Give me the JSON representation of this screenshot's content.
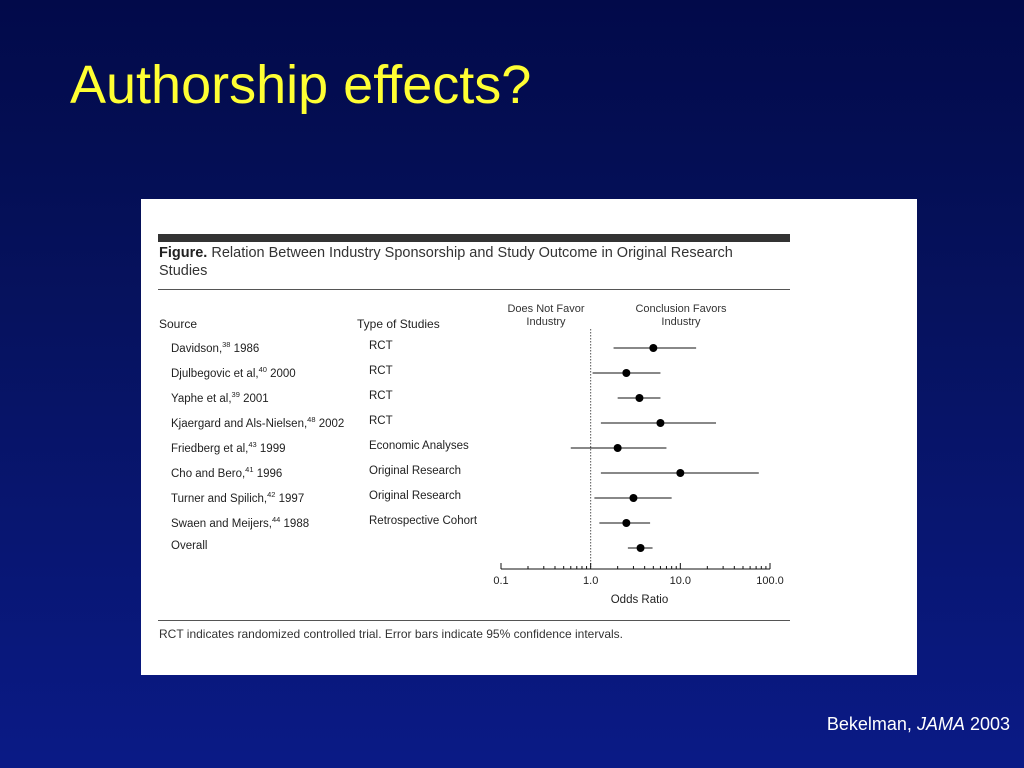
{
  "slide": {
    "title": "Authorship effects?",
    "citation": {
      "author": "Bekelman, ",
      "journal": "JAMA",
      "year": " 2003"
    }
  },
  "figure": {
    "label": "Figure.",
    "title": " Relation Between Industry Sponsorship and Study Outcome in Original Research Studies",
    "footnote": "RCT indicates randomized controlled trial. Error bars indicate 95% confidence intervals.",
    "col_source": "Source",
    "col_type": "Type of Studies",
    "left_label": "Does Not Favor Industry",
    "right_label": "Conclusion Favors Industry"
  },
  "chart_data": {
    "type": "scatter",
    "subtype": "forest-plot",
    "xlabel": "Odds Ratio",
    "x_scale": "log",
    "xlim": [
      0.1,
      100.0
    ],
    "reference_line": 1.0,
    "ticks": [
      "0.1",
      "1.0",
      "10.0",
      "100.0"
    ],
    "rows": [
      {
        "name": "Davidson,",
        "ref": "38",
        "year": " 1986",
        "type": "RCT",
        "or": 5.0,
        "lo": 1.8,
        "hi": 15.0
      },
      {
        "name": "Djulbegovic et al,",
        "ref": "40",
        "year": " 2000",
        "type": "RCT",
        "or": 2.5,
        "lo": 1.05,
        "hi": 6.0
      },
      {
        "name": "Yaphe et al,",
        "ref": "39",
        "year": " 2001",
        "type": "RCT",
        "or": 3.5,
        "lo": 2.0,
        "hi": 6.0
      },
      {
        "name": "Kjaergard and Als-Nielsen,",
        "ref": "48",
        "year": " 2002",
        "type": "RCT",
        "or": 6.0,
        "lo": 1.3,
        "hi": 25.0
      },
      {
        "name": "Friedberg et al,",
        "ref": "43",
        "year": " 1999",
        "type": "Economic Analyses",
        "or": 2.0,
        "lo": 0.6,
        "hi": 7.0
      },
      {
        "name": "Cho and Bero,",
        "ref": "41",
        "year": " 1996",
        "type": "Original Research",
        "or": 10.0,
        "lo": 1.3,
        "hi": 75.0
      },
      {
        "name": "Turner and Spilich,",
        "ref": "42",
        "year": " 1997",
        "type": "Original Research",
        "or": 3.0,
        "lo": 1.1,
        "hi": 8.0
      },
      {
        "name": "Swaen and Meijers,",
        "ref": "44",
        "year": " 1988",
        "type": "Retrospective Cohort",
        "or": 2.5,
        "lo": 1.25,
        "hi": 4.6
      },
      {
        "name": "Overall",
        "ref": "",
        "year": "",
        "type": "",
        "or": 3.6,
        "lo": 2.6,
        "hi": 4.9
      }
    ]
  }
}
